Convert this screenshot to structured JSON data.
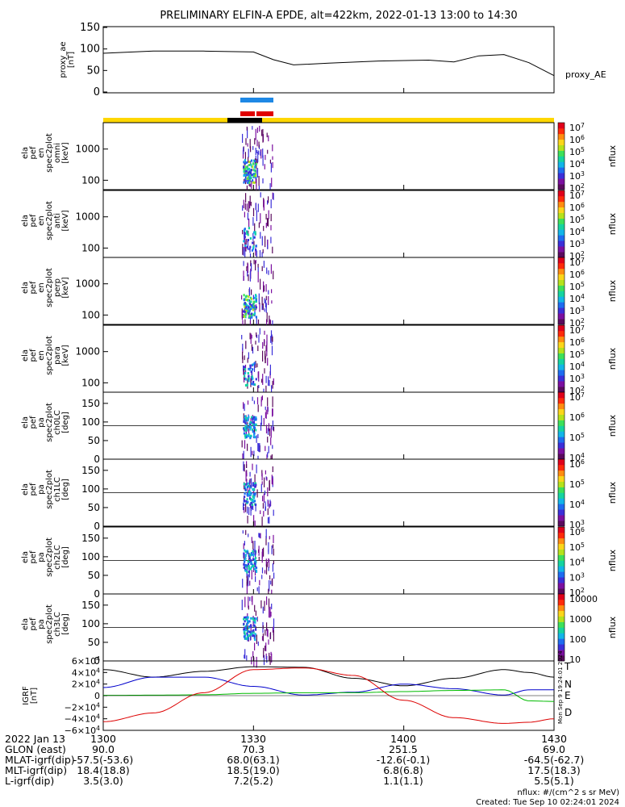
{
  "title": "PRELIMINARY ELFIN-A EPDE, alt=422km, 2022-01-13 13:00 to 14:30",
  "chart_data": [
    {
      "type": "line",
      "panel": "proxy_ae",
      "ylabel_lines": [
        "proxy_ae",
        "[nT]"
      ],
      "legend": "proxy_AE",
      "ylim": [
        0,
        150
      ],
      "yticks": [
        "150",
        "100",
        "50",
        "0"
      ],
      "x_minutes": [
        0,
        10,
        20,
        30,
        34,
        38,
        45,
        55,
        65,
        70,
        75,
        80,
        85,
        90
      ],
      "values": [
        90,
        95,
        95,
        93,
        75,
        63,
        67,
        72,
        74,
        70,
        84,
        87,
        68,
        38
      ],
      "color": "#000000"
    },
    {
      "type": "heatmap",
      "panel": "spec_omni",
      "ylabel_lines": [
        "ela",
        "pef",
        "en",
        "spec2plot",
        "omni",
        "[keV]"
      ],
      "yscale": "log",
      "yticks": [
        "1000",
        "100"
      ],
      "zlabel": "nflux",
      "zticks": [
        "10^7",
        "10^6",
        "10^5",
        "10^4",
        "10^3",
        "10^2"
      ]
    },
    {
      "type": "heatmap",
      "panel": "spec_anti",
      "ylabel_lines": [
        "ela",
        "pef",
        "en",
        "spec2plot",
        "anti",
        "[keV]"
      ],
      "yscale": "log",
      "yticks": [
        "1000",
        "100"
      ],
      "zlabel": "nflux",
      "zticks": [
        "10^7",
        "10^6",
        "10^5",
        "10^4",
        "10^3",
        "10^2"
      ]
    },
    {
      "type": "heatmap",
      "panel": "spec_perp",
      "ylabel_lines": [
        "ela",
        "pef",
        "en",
        "spec2plot",
        "perp",
        "[keV]"
      ],
      "yscale": "log",
      "yticks": [
        "1000",
        "100"
      ],
      "zlabel": "nflux",
      "zticks": [
        "10^7",
        "10^6",
        "10^5",
        "10^4",
        "10^3",
        "10^2"
      ]
    },
    {
      "type": "heatmap",
      "panel": "spec_para",
      "ylabel_lines": [
        "ela",
        "pef",
        "en",
        "spec2plot",
        "para",
        "[keV]"
      ],
      "yscale": "log",
      "yticks": [
        "1000",
        "100"
      ],
      "zlabel": "nflux",
      "zticks": [
        "10^7",
        "10^6",
        "10^5",
        "10^4",
        "10^3",
        "10^2"
      ]
    },
    {
      "type": "heatmap",
      "panel": "pa_ch0LC",
      "ylabel_lines": [
        "ela",
        "pef",
        "pa",
        "spec2plot",
        "ch0LC",
        "[deg]"
      ],
      "ylim": [
        0,
        180
      ],
      "yticks": [
        "150",
        "100",
        "50",
        "0"
      ],
      "zlabel": "nflux",
      "zticks": [
        "10^7",
        "10^6",
        "10^5",
        "10^4"
      ]
    },
    {
      "type": "heatmap",
      "panel": "pa_ch1LC",
      "ylabel_lines": [
        "ela",
        "pef",
        "pa",
        "spec2plot",
        "ch1LC",
        "[deg]"
      ],
      "ylim": [
        0,
        180
      ],
      "yticks": [
        "150",
        "100",
        "50",
        "0"
      ],
      "zlabel": "nflux",
      "zticks": [
        "10^6",
        "10^5",
        "10^4",
        "10^3"
      ]
    },
    {
      "type": "heatmap",
      "panel": "pa_ch2LC",
      "ylabel_lines": [
        "ela",
        "pef",
        "pa",
        "spec2plot",
        "ch2LC",
        "[deg]"
      ],
      "ylim": [
        0,
        180
      ],
      "yticks": [
        "150",
        "100",
        "50",
        "0"
      ],
      "zlabel": "nflux",
      "zticks": [
        "10^6",
        "10^5",
        "10^4",
        "10^3",
        "10^2"
      ]
    },
    {
      "type": "heatmap",
      "panel": "pa_ch3LC",
      "ylabel_lines": [
        "ela",
        "pef",
        "pa",
        "spec2plot",
        "ch3LC",
        "[deg]"
      ],
      "ylim": [
        0,
        180
      ],
      "yticks": [
        "150",
        "100",
        "50",
        "0"
      ],
      "zlabel": "nflux",
      "zticks": [
        "10000",
        "1000",
        "100",
        "10"
      ]
    },
    {
      "type": "line",
      "panel": "igrf",
      "ylabel_lines": [
        "IGRF",
        "[nT]"
      ],
      "ylim": [
        -60000,
        60000
      ],
      "yticks": [
        "6×10^4",
        "4×10^4",
        "2×10^4",
        "0",
        "−2×10^4",
        "−4×10^4",
        "−6×10^4"
      ],
      "x_minutes": [
        0,
        10,
        20,
        30,
        40,
        50,
        60,
        70,
        80,
        85,
        90
      ],
      "series": [
        {
          "name": "T",
          "color": "#000000",
          "values": [
            45000,
            32000,
            42000,
            50000,
            49000,
            30000,
            17000,
            30000,
            45000,
            40000,
            32000
          ]
        },
        {
          "name": "N",
          "color": "#0000cc",
          "values": [
            14000,
            32000,
            32000,
            16000,
            1000,
            6000,
            20000,
            12000,
            1000,
            10000,
            10000
          ]
        },
        {
          "name": "E",
          "color": "#00bb00",
          "values": [
            500,
            800,
            1500,
            4000,
            5000,
            5000,
            7000,
            9000,
            10000,
            -9000,
            -10000
          ]
        },
        {
          "name": "D",
          "color": "#dd0000",
          "values": [
            -45000,
            -30000,
            5000,
            45000,
            48000,
            35000,
            -8000,
            -38000,
            -48000,
            -46000,
            -40000
          ]
        }
      ]
    }
  ],
  "x_axis": {
    "tick_labels": [
      "1300",
      "1330",
      "1400",
      "1430"
    ],
    "rows": [
      {
        "label": "2022 Jan 13",
        "values": [
          "",
          "",
          "",
          ""
        ]
      },
      {
        "label": "GLON (east)",
        "values": [
          "90.0",
          "70.3",
          "251.5",
          "69.0"
        ]
      },
      {
        "label": "MLAT-igrf(dip)",
        "values": [
          "-57.5(-53.6)",
          "68.0(63.1)",
          "-12.6(-0.1)",
          "-64.5(-62.7)"
        ]
      },
      {
        "label": "MLT-igrf(dip)",
        "values": [
          "18.4(18.8)",
          "18.5(19.0)",
          "6.8(6.8)",
          "17.5(18.3)"
        ]
      },
      {
        "label": "L-igrf(dip)",
        "values": [
          "3.5(3.0)",
          "7.2(5.2)",
          "1.1(1.1)",
          "5.5(5.1)"
        ]
      }
    ]
  },
  "footer": {
    "units": "nflux: #/(cm^2 s sr MeV)",
    "created": "Created: Tue Sep 10 02:24:01 2024",
    "side_stamp": "Mon Sep 9 19:24:01 2024"
  },
  "colors": {
    "status_yellow": "#ffd700",
    "status_black": "#000000",
    "science_blue": "#1e88e5",
    "science_red": "#e00000"
  }
}
